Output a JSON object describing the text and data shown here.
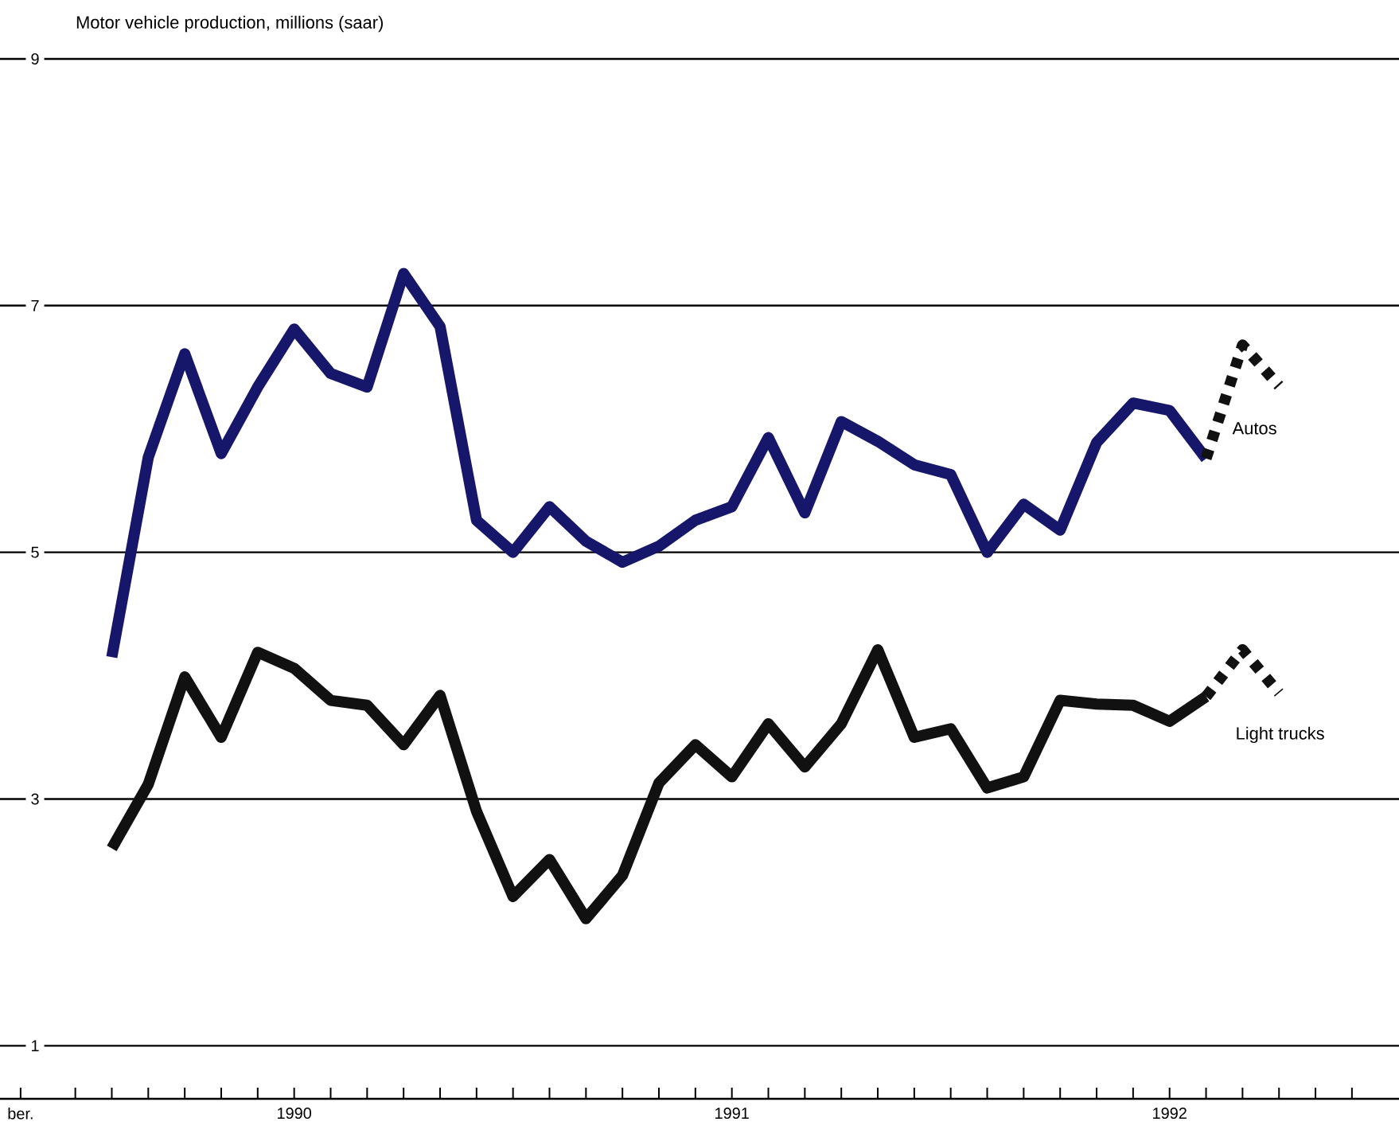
{
  "chart_data": {
    "type": "line",
    "ylabel": "Motor vehicle production, millions (saar)",
    "xlim": [
      "1989-10-30",
      "1993-01-10"
    ],
    "ylim": [
      0.57,
      9
    ],
    "yticks": [
      1,
      3,
      5,
      7,
      9
    ],
    "xticks": [
      {
        "value": "1989-11-16",
        "label": "ber."
      },
      {
        "value": "1990-01",
        "label": null
      },
      {
        "value": "1990-02",
        "label": null
      },
      {
        "value": "1990-03",
        "label": null
      },
      {
        "value": "1990-04",
        "label": null
      },
      {
        "value": "1990-05",
        "label": null
      },
      {
        "value": "1990-06",
        "label": null
      },
      {
        "value": "1990-07",
        "label": "1990"
      },
      {
        "value": "1990-08",
        "label": null
      },
      {
        "value": "1990-09",
        "label": null
      },
      {
        "value": "1990-10",
        "label": null
      },
      {
        "value": "1990-11",
        "label": null
      },
      {
        "value": "1990-12",
        "label": null
      },
      {
        "value": "1991-01",
        "label": null
      },
      {
        "value": "1991-02",
        "label": null
      },
      {
        "value": "1991-03",
        "label": null
      },
      {
        "value": "1991-04",
        "label": null
      },
      {
        "value": "1991-05",
        "label": null
      },
      {
        "value": "1991-06",
        "label": null
      },
      {
        "value": "1991-07",
        "label": "1991"
      },
      {
        "value": "1991-08",
        "label": null
      },
      {
        "value": "1991-09",
        "label": null
      },
      {
        "value": "1991-10",
        "label": null
      },
      {
        "value": "1991-11",
        "label": null
      },
      {
        "value": "1991-12",
        "label": null
      },
      {
        "value": "1992-01",
        "label": null
      },
      {
        "value": "1992-02",
        "label": null
      },
      {
        "value": "1992-03",
        "label": null
      },
      {
        "value": "1992-04",
        "label": null
      },
      {
        "value": "1992-05",
        "label": null
      },
      {
        "value": "1992-06",
        "label": null
      },
      {
        "value": "1992-07",
        "label": "1992"
      },
      {
        "value": "1992-08",
        "label": null
      },
      {
        "value": "1992-09",
        "label": null
      },
      {
        "value": "1992-10",
        "label": null
      },
      {
        "value": "1992-11",
        "label": null
      },
      {
        "value": "1992-12",
        "label": null
      }
    ],
    "grid": "y",
    "series": [
      {
        "name": "Autos",
        "color": "#16166a",
        "x": [
          "1990-02",
          "1990-03",
          "1990-04",
          "1990-05",
          "1990-06",
          "1990-07",
          "1990-08",
          "1990-09",
          "1990-10",
          "1990-11",
          "1990-12",
          "1991-01",
          "1991-02",
          "1991-03",
          "1991-04",
          "1991-05",
          "1991-06",
          "1991-07",
          "1991-08",
          "1991-09",
          "1991-10",
          "1991-11",
          "1991-12",
          "1992-01",
          "1992-02",
          "1992-03",
          "1992-04",
          "1992-05",
          "1992-06",
          "1992-07",
          "1992-08"
        ],
        "values": [
          4.15,
          5.77,
          6.61,
          5.8,
          6.34,
          6.81,
          6.45,
          6.34,
          7.26,
          6.83,
          5.26,
          5.0,
          5.37,
          5.09,
          4.92,
          5.05,
          5.26,
          5.37,
          5.93,
          5.32,
          6.06,
          5.9,
          5.71,
          5.63,
          5.0,
          5.39,
          5.18,
          5.89,
          6.21,
          6.15,
          5.76
        ]
      },
      {
        "color": "#111111",
        "line_style": "dotted",
        "x": [
          "1992-08",
          "1992-09",
          "1992-10"
        ],
        "values": [
          5.76,
          6.68,
          6.35
        ]
      },
      {
        "name": "Light trucks",
        "color": "#111111",
        "x": [
          "1990-02",
          "1990-03",
          "1990-04",
          "1990-05",
          "1990-06",
          "1990-07",
          "1990-08",
          "1990-09",
          "1990-10",
          "1990-11",
          "1990-12",
          "1991-01",
          "1991-02",
          "1991-03",
          "1991-04",
          "1991-05",
          "1991-06",
          "1991-07",
          "1991-08",
          "1991-09",
          "1991-10",
          "1991-11",
          "1991-12",
          "1992-01",
          "1992-02",
          "1992-03",
          "1992-04",
          "1992-05",
          "1992-06",
          "1992-07",
          "1992-08"
        ],
        "values": [
          2.6,
          3.12,
          3.99,
          3.5,
          4.19,
          4.06,
          3.8,
          3.76,
          3.44,
          3.84,
          2.9,
          2.21,
          2.51,
          2.03,
          2.38,
          3.13,
          3.44,
          3.18,
          3.61,
          3.26,
          3.61,
          4.21,
          3.5,
          3.57,
          3.09,
          3.18,
          3.8,
          3.77,
          3.76,
          3.63,
          3.83
        ]
      },
      {
        "color": "#111111",
        "line_style": "dotted",
        "x": [
          "1992-08",
          "1992-09",
          "1992-10"
        ],
        "values": [
          3.83,
          4.21,
          3.86
        ]
      }
    ]
  }
}
